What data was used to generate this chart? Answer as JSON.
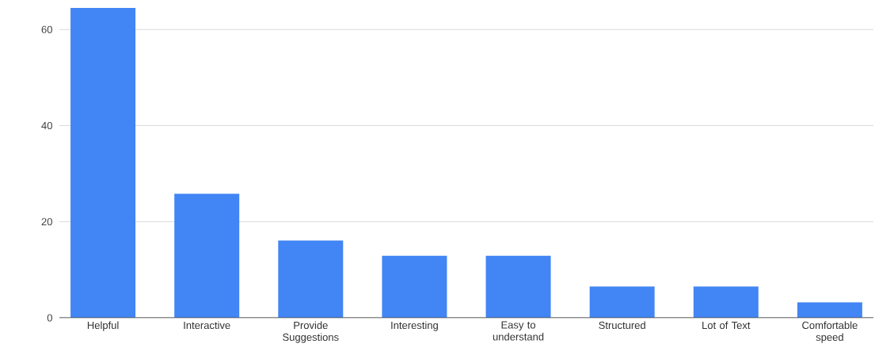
{
  "chart_data": {
    "type": "bar",
    "categories": [
      "Helpful",
      "Interactive",
      "Provide Suggestions",
      "Interesting",
      "Easy to understand",
      "Structured",
      "Lot of Text",
      "Comfortable speed"
    ],
    "values": [
      64.5,
      25.8,
      16.1,
      12.9,
      12.9,
      6.5,
      6.5,
      3.2
    ],
    "color": "#4285f4",
    "ylim": [
      0,
      64.5
    ],
    "yticks": [
      0,
      20,
      40,
      60
    ],
    "grid": "y"
  }
}
